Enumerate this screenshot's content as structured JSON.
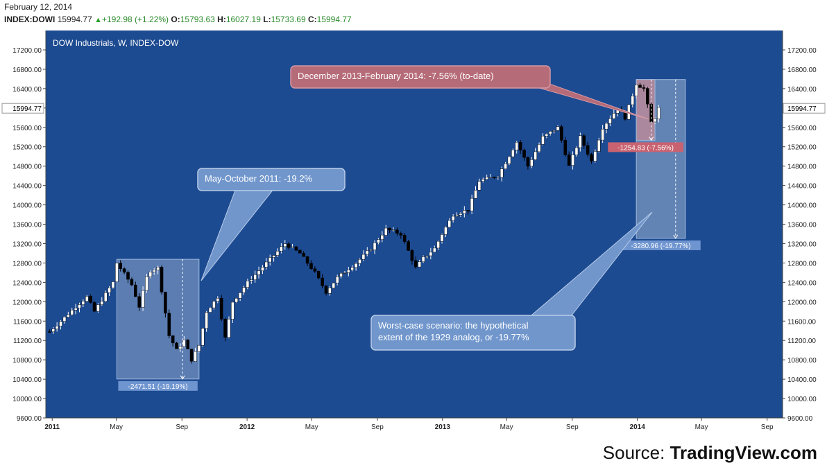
{
  "header": {
    "date": "February 12, 2014",
    "symbol": "INDEX:DOWI",
    "last": "15994.77",
    "change": "+192.98 (+1.22%)",
    "open_label": "O:",
    "open": "15793.63",
    "high_label": "H:",
    "high": "16027.19",
    "low_label": "L:",
    "low": "15733.69",
    "close_label": "C:",
    "close": "15994.77"
  },
  "source": {
    "prefix": "Source: ",
    "name": "TradingView.com"
  },
  "colors": {
    "background": "#1d4b91",
    "up_candle": "#ffffff",
    "down_candle": "#000000",
    "axis_text": "#222222",
    "callout_blue": "#6e93c8",
    "callout_red": "#b56b78"
  },
  "chart_data": {
    "type": "candlestick",
    "title": "DOW Industrials, W, INDEX-DOW",
    "price_marker": "15994.77",
    "y_ticks": [
      "9600.00",
      "10000.00",
      "10400.00",
      "10800.00",
      "11200.00",
      "11600.00",
      "12000.00",
      "12400.00",
      "12800.00",
      "13200.00",
      "13600.00",
      "14000.00",
      "14400.00",
      "14800.00",
      "15200.00",
      "15600.00",
      "16000.00",
      "16400.00",
      "16800.00",
      "17200.00"
    ],
    "ylim": [
      9600,
      17200
    ],
    "xlim": [
      "2010-12-20",
      "2014-09-30"
    ],
    "x_ticks": [
      {
        "label": "2011",
        "date": "2011-01-01"
      },
      {
        "label": "May",
        "date": "2011-05-01"
      },
      {
        "label": "Sep",
        "date": "2011-09-01"
      },
      {
        "label": "2012",
        "date": "2012-01-01"
      },
      {
        "label": "May",
        "date": "2012-05-01"
      },
      {
        "label": "Sep",
        "date": "2012-09-01"
      },
      {
        "label": "2013",
        "date": "2013-01-01"
      },
      {
        "label": "May",
        "date": "2013-05-01"
      },
      {
        "label": "Sep",
        "date": "2013-09-01"
      },
      {
        "label": "2014",
        "date": "2014-01-01"
      },
      {
        "label": "May",
        "date": "2014-05-01"
      },
      {
        "label": "Sep",
        "date": "2014-09-01"
      }
    ],
    "close_path": [
      [
        "2010-12-27",
        11380
      ],
      [
        "2011-01-17",
        11600
      ],
      [
        "2011-02-14",
        11900
      ],
      [
        "2011-03-07",
        12100
      ],
      [
        "2011-03-21",
        11800
      ],
      [
        "2011-04-25",
        12400
      ],
      [
        "2011-05-02",
        12800
      ],
      [
        "2011-05-30",
        12350
      ],
      [
        "2011-06-13",
        11900
      ],
      [
        "2011-06-27",
        12500
      ],
      [
        "2011-07-04",
        12650
      ],
      [
        "2011-07-18",
        12700
      ],
      [
        "2011-08-08",
        11300
      ],
      [
        "2011-08-22",
        11000
      ],
      [
        "2011-09-05",
        11200
      ],
      [
        "2011-09-19",
        10800
      ],
      [
        "2011-10-03",
        11100
      ],
      [
        "2011-10-17",
        11800
      ],
      [
        "2011-11-07",
        12100
      ],
      [
        "2011-11-21",
        11250
      ],
      [
        "2011-12-05",
        12000
      ],
      [
        "2012-01-02",
        12400
      ],
      [
        "2012-02-06",
        12800
      ],
      [
        "2012-03-12",
        13200
      ],
      [
        "2012-04-09",
        13000
      ],
      [
        "2012-05-07",
        12600
      ],
      [
        "2012-05-28",
        12200
      ],
      [
        "2012-06-18",
        12500
      ],
      [
        "2012-07-23",
        12800
      ],
      [
        "2012-08-20",
        13100
      ],
      [
        "2012-09-17",
        13500
      ],
      [
        "2012-10-15",
        13400
      ],
      [
        "2012-11-12",
        12700
      ],
      [
        "2012-11-26",
        12900
      ],
      [
        "2012-12-17",
        13100
      ],
      [
        "2012-12-31",
        13400
      ],
      [
        "2013-01-21",
        13800
      ],
      [
        "2013-02-18",
        13900
      ],
      [
        "2013-03-11",
        14500
      ],
      [
        "2013-04-15",
        14600
      ],
      [
        "2013-05-20",
        15300
      ],
      [
        "2013-06-10",
        14800
      ],
      [
        "2013-07-08",
        15400
      ],
      [
        "2013-08-05",
        15600
      ],
      [
        "2013-08-26",
        14800
      ],
      [
        "2013-09-16",
        15400
      ],
      [
        "2013-10-07",
        14900
      ],
      [
        "2013-10-28",
        15600
      ],
      [
        "2013-11-25",
        16000
      ],
      [
        "2013-12-09",
        15800
      ],
      [
        "2013-12-30",
        16500
      ],
      [
        "2014-01-13",
        16400
      ],
      [
        "2014-01-27",
        15700
      ],
      [
        "2014-02-03",
        15800
      ],
      [
        "2014-02-10",
        15995
      ]
    ],
    "annotations": [
      {
        "name": "drawdown-2011",
        "label": "-2471.51 (-19.19%)",
        "from": [
          "2011-05-02",
          12876
        ],
        "to": [
          "2011-10-03",
          10404
        ]
      },
      {
        "name": "decline-2014",
        "label": "-1254.83 (-7.56%)",
        "from": [
          "2013-12-30",
          16589
        ],
        "to": [
          "2014-02-03",
          15334
        ]
      },
      {
        "name": "worst-case",
        "label": "-3280.96 (-19.77%)",
        "from": [
          "2013-12-30",
          16589
        ],
        "to": [
          "2014-04-01",
          13308
        ]
      }
    ],
    "callouts": [
      {
        "name": "callout-may-oct-2011",
        "text": "May-October 2011: -19.2%"
      },
      {
        "name": "callout-dec-feb-2014",
        "text": "December 2013-February 2014: -7.56% (to-date)"
      },
      {
        "name": "callout-worst-case",
        "lines": [
          "Worst-case scenario: the hypothetical",
          "extent of the 1929 analog, or -19.77%"
        ]
      }
    ]
  }
}
